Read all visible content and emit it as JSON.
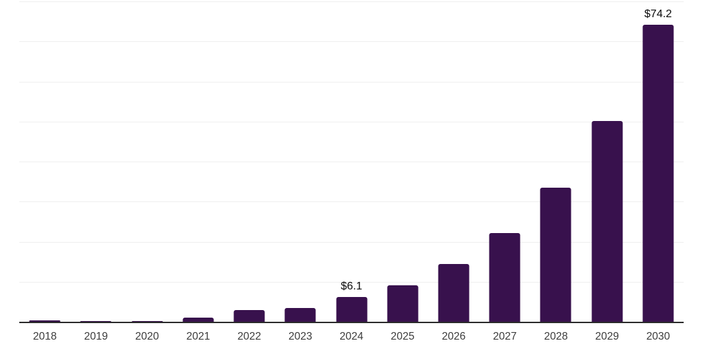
{
  "chart_style": {
    "background_color": "#ffffff",
    "bar_color": "#38114d",
    "axis_line_color": "#2b2b2b",
    "gridline_color": "#efefef",
    "tick_label_color": "#3c3c3c",
    "data_label_color": "#0a0a0a"
  },
  "chart_data": {
    "type": "bar",
    "categories": [
      "2018",
      "2019",
      "2020",
      "2021",
      "2022",
      "2023",
      "2024",
      "2025",
      "2026",
      "2027",
      "2028",
      "2029",
      "2030"
    ],
    "values": [
      0.4,
      0.1,
      0.1,
      1.0,
      2.9,
      3.4,
      6.1,
      9.1,
      14.4,
      22.2,
      33.5,
      50.2,
      74.2
    ],
    "data_labels": {
      "2024": "$6.1",
      "2030": "$74.2"
    },
    "title": "",
    "xlabel": "",
    "ylabel": "",
    "ylim": [
      0,
      80
    ],
    "gridline_step": 10,
    "grid": "horizontal",
    "legend": "none",
    "y_axis_labels_visible": false,
    "currency_unit_prefix": "$"
  }
}
